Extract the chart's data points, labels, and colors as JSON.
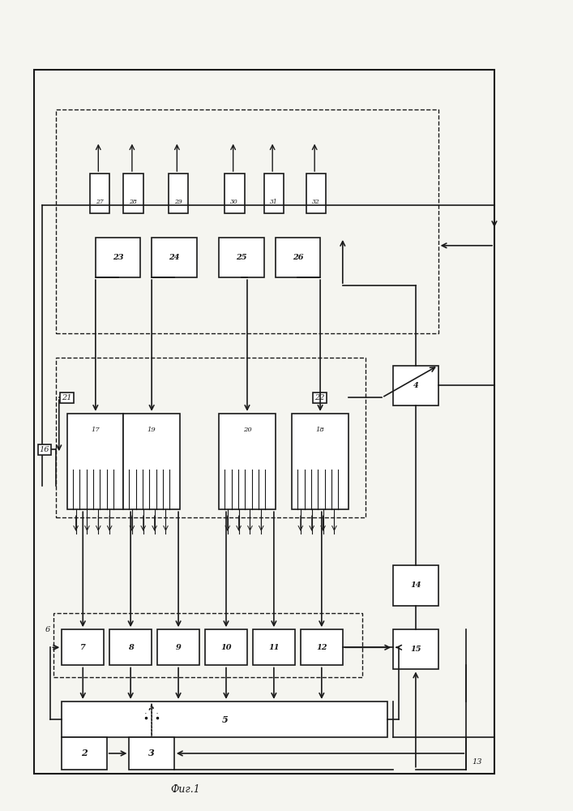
{
  "title": "Фиг.1",
  "bg_color": "#f5f5f0",
  "line_color": "#1a1a1a",
  "box_fill": "#ffffff",
  "text_color": "#1a1a1a",
  "fig_width": 7.07,
  "fig_height": 10.0,
  "dpi": 100
}
